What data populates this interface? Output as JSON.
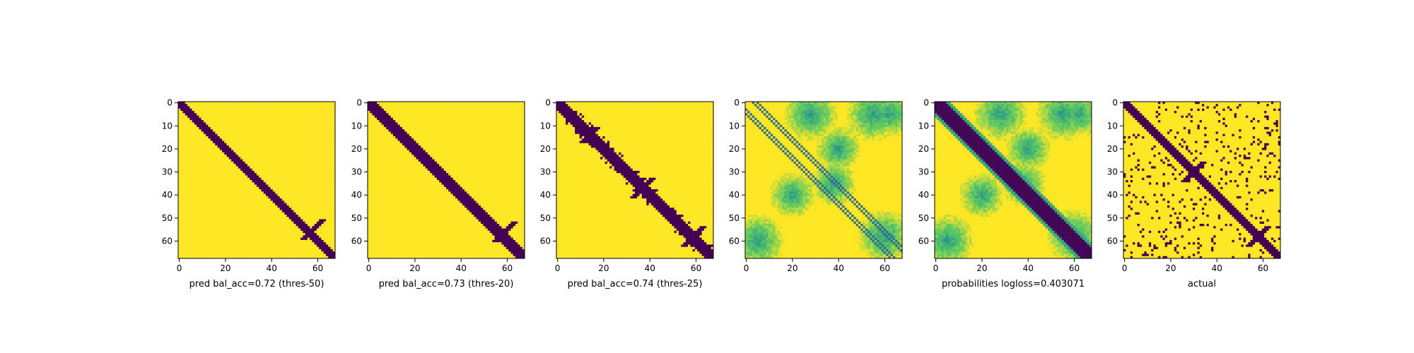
{
  "figure": {
    "background": "#ffffff",
    "colormap": "viridis",
    "colors": {
      "low": "#440154",
      "mid": "#21918c",
      "high": "#fde725"
    }
  },
  "chart_data": [
    {
      "type": "heatmap",
      "panel": "pred_thres50",
      "xlabel": "pred bal_acc=0.72 (thres-50)",
      "xticks": [
        0,
        20,
        40,
        60
      ],
      "yticks": [
        0,
        10,
        20,
        30,
        40,
        50,
        60
      ],
      "xlim": [
        0,
        68
      ],
      "ylim": [
        68,
        0
      ],
      "grid": false,
      "matrix_size": 68,
      "values": "binary",
      "diagonal_band_halfwidth": 2,
      "features": [
        {
          "row": 55,
          "col": 58,
          "len": 8
        }
      ]
    },
    {
      "type": "heatmap",
      "panel": "pred_thres20",
      "xlabel": "pred bal_acc=0.73 (thres-20)",
      "xticks": [
        0,
        20,
        40,
        60
      ],
      "yticks": [
        0,
        10,
        20,
        30,
        40,
        50,
        60
      ],
      "xlim": [
        0,
        68
      ],
      "ylim": [
        68,
        0
      ],
      "grid": false,
      "matrix_size": 68,
      "values": "binary",
      "diagonal_band_halfwidth": 3,
      "features": [
        {
          "row": 56,
          "col": 59,
          "len": 8
        }
      ]
    },
    {
      "type": "heatmap",
      "panel": "pred_thres25",
      "xlabel": "pred bal_acc=0.74 (thres-25)",
      "xticks": [
        0,
        20,
        40,
        60
      ],
      "yticks": [
        0,
        10,
        20,
        30,
        40,
        50,
        60
      ],
      "xlim": [
        0,
        68
      ],
      "ylim": [
        68,
        0
      ],
      "grid": false,
      "matrix_size": 68,
      "values": "binary",
      "diagonal_band_halfwidth": 3,
      "features": [
        {
          "row": 14,
          "col": 14,
          "len": 6
        },
        {
          "row": 37,
          "col": 37,
          "len": 8
        },
        {
          "row": 58,
          "col": 59,
          "len": 9
        }
      ]
    },
    {
      "type": "heatmap",
      "panel": "probabilities_offdiag",
      "xlabel": "",
      "xticks": [
        0,
        20,
        40,
        60
      ],
      "yticks": [
        0,
        10,
        20,
        30,
        40,
        50,
        60
      ],
      "xlim": [
        0,
        68
      ],
      "ylim": [
        68,
        0
      ],
      "grid": false,
      "matrix_size": 68,
      "values": "continuous",
      "diagonal_lines_offset": [
        3,
        5
      ]
    },
    {
      "type": "heatmap",
      "panel": "probabilities",
      "xlabel": "probabilities logloss=0.403071",
      "xticks": [
        0,
        20,
        40,
        60
      ],
      "yticks": [
        0,
        10,
        20,
        30,
        40,
        50,
        60
      ],
      "xlim": [
        0,
        68
      ],
      "ylim": [
        68,
        0
      ],
      "grid": false,
      "matrix_size": 68,
      "values": "continuous",
      "diagonal_band_halfwidth": 4
    },
    {
      "type": "heatmap",
      "panel": "actual",
      "xlabel": "actual",
      "xticks": [
        0,
        20,
        40,
        60
      ],
      "yticks": [
        0,
        10,
        20,
        30,
        40,
        50,
        60
      ],
      "xlim": [
        0,
        68
      ],
      "ylim": [
        68,
        0
      ],
      "grid": false,
      "matrix_size": 68,
      "values": "binary",
      "diagonal_band_halfwidth": 2,
      "features": [
        {
          "row": 30,
          "col": 30,
          "len": 8
        },
        {
          "row": 58,
          "col": 58,
          "len": 9
        }
      ]
    }
  ]
}
